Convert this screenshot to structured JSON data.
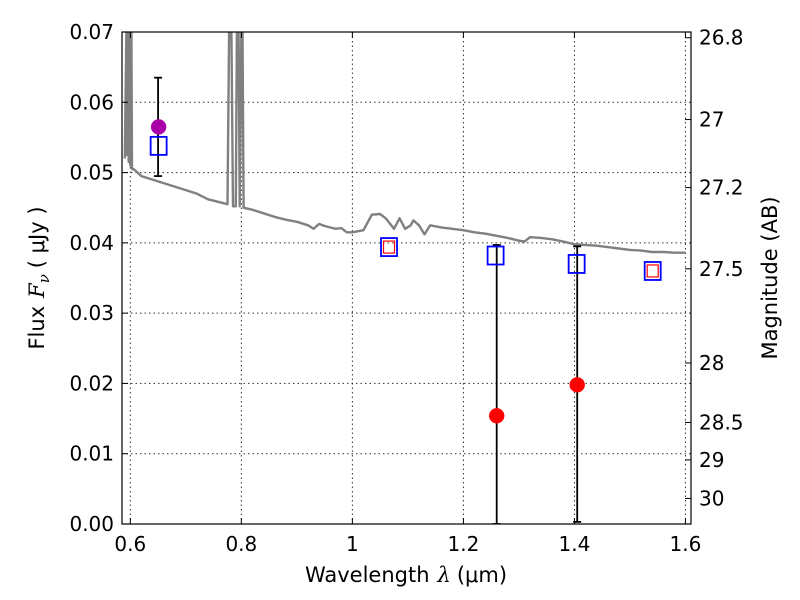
{
  "chart_data": {
    "type": "scatter",
    "xlabel_prefix": "Wavelength",
    "xlabel_symbol": "λ",
    "xlabel_unit": "(μm)",
    "ylabel_prefix": "Flux",
    "ylabel_symbol": "F",
    "ylabel_subscript": "ν",
    "ylabel_unit": "( μJy )",
    "y2label": "Magnitude (AB)",
    "xlim": [
      0.585,
      1.61
    ],
    "ylim": [
      0.0,
      0.07
    ],
    "xticks": [
      0.6,
      0.8,
      1.0,
      1.2,
      1.4,
      1.6
    ],
    "xtick_labels": [
      "0.6",
      "0.8",
      "1",
      "1.2",
      "1.4",
      "1.6"
    ],
    "yticks": [
      0.0,
      0.01,
      0.02,
      0.03,
      0.04,
      0.05,
      0.06,
      0.07
    ],
    "ytick_labels": [
      "0.00",
      "0.01",
      "0.02",
      "0.03",
      "0.04",
      "0.05",
      "0.06",
      "0.07"
    ],
    "y2ticks": [
      {
        "label": "26.8",
        "value": 26.8
      },
      {
        "label": "27",
        "value": 27.0
      },
      {
        "label": "27.2",
        "value": 27.2
      },
      {
        "label": "27.5",
        "value": 27.5
      },
      {
        "label": "28",
        "value": 28.0
      },
      {
        "label": "28.5",
        "value": 28.5
      },
      {
        "label": "29",
        "value": 29.0
      },
      {
        "label": "30",
        "value": 30.0
      }
    ],
    "grid": true,
    "series": [
      {
        "kind": "line",
        "color": "#808080",
        "points": [
          [
            0.59,
            0.052
          ],
          [
            0.593,
            0.07
          ],
          [
            0.594,
            0.0525
          ],
          [
            0.596,
            0.07
          ],
          [
            0.597,
            0.0515
          ],
          [
            0.599,
            0.07
          ],
          [
            0.6,
            0.051
          ],
          [
            0.602,
            0.07
          ],
          [
            0.603,
            0.0505
          ],
          [
            0.606,
            0.0505
          ],
          [
            0.62,
            0.0495
          ],
          [
            0.64,
            0.049
          ],
          [
            0.66,
            0.0485
          ],
          [
            0.68,
            0.048
          ],
          [
            0.7,
            0.0475
          ],
          [
            0.72,
            0.047
          ],
          [
            0.74,
            0.0462
          ],
          [
            0.76,
            0.0458
          ],
          [
            0.775,
            0.0455
          ],
          [
            0.778,
            0.07
          ],
          [
            0.782,
            0.07
          ],
          [
            0.785,
            0.0452
          ],
          [
            0.79,
            0.0452
          ],
          [
            0.792,
            0.07
          ],
          [
            0.795,
            0.07
          ],
          [
            0.797,
            0.0452
          ],
          [
            0.8,
            0.07
          ],
          [
            0.802,
            0.07
          ],
          [
            0.804,
            0.045
          ],
          [
            0.82,
            0.0447
          ],
          [
            0.84,
            0.0442
          ],
          [
            0.86,
            0.0437
          ],
          [
            0.88,
            0.0433
          ],
          [
            0.9,
            0.043
          ],
          [
            0.92,
            0.0425
          ],
          [
            0.93,
            0.042
          ],
          [
            0.94,
            0.0427
          ],
          [
            0.95,
            0.0424
          ],
          [
            0.97,
            0.042
          ],
          [
            0.98,
            0.0421
          ],
          [
            0.99,
            0.0415
          ],
          [
            1.0,
            0.0415
          ],
          [
            1.02,
            0.0418
          ],
          [
            1.035,
            0.044
          ],
          [
            1.05,
            0.0441
          ],
          [
            1.06,
            0.0435
          ],
          [
            1.075,
            0.042
          ],
          [
            1.085,
            0.0435
          ],
          [
            1.095,
            0.042
          ],
          [
            1.105,
            0.0425
          ],
          [
            1.11,
            0.0432
          ],
          [
            1.12,
            0.0425
          ],
          [
            1.13,
            0.0412
          ],
          [
            1.14,
            0.0425
          ],
          [
            1.16,
            0.0422
          ],
          [
            1.18,
            0.042
          ],
          [
            1.2,
            0.0418
          ],
          [
            1.22,
            0.0415
          ],
          [
            1.24,
            0.0413
          ],
          [
            1.26,
            0.041
          ],
          [
            1.28,
            0.0407
          ],
          [
            1.3,
            0.0403
          ],
          [
            1.31,
            0.0402
          ],
          [
            1.32,
            0.0408
          ],
          [
            1.34,
            0.0407
          ],
          [
            1.36,
            0.0405
          ],
          [
            1.38,
            0.0402
          ],
          [
            1.4,
            0.0398
          ],
          [
            1.42,
            0.0397
          ],
          [
            1.44,
            0.0396
          ],
          [
            1.46,
            0.0394
          ],
          [
            1.48,
            0.0392
          ],
          [
            1.5,
            0.039
          ],
          [
            1.52,
            0.0389
          ],
          [
            1.54,
            0.0387
          ],
          [
            1.56,
            0.0387
          ],
          [
            1.58,
            0.0386
          ],
          [
            1.6,
            0.0386
          ]
        ]
      },
      {
        "kind": "errorbars",
        "color": "#000000",
        "points": [
          {
            "x": 0.65,
            "low": 0.0495,
            "high": 0.0635
          },
          {
            "x": 1.26,
            "low": 0.0,
            "high": 0.0397
          },
          {
            "x": 1.405,
            "low": 0.0003,
            "high": 0.0395
          }
        ]
      },
      {
        "kind": "squares",
        "color": "#0000ff",
        "points": [
          [
            0.651,
            0.0538
          ],
          [
            1.066,
            0.0394
          ],
          [
            1.258,
            0.0382
          ],
          [
            1.404,
            0.037
          ],
          [
            1.541,
            0.036
          ]
        ]
      },
      {
        "kind": "squares-small",
        "color": "#ff0000",
        "points": [
          [
            1.066,
            0.0394
          ],
          [
            1.541,
            0.036
          ]
        ]
      },
      {
        "kind": "circles",
        "color": "#ff0000",
        "points": [
          [
            1.26,
            0.0154
          ],
          [
            1.405,
            0.0198
          ]
        ]
      },
      {
        "kind": "circles",
        "color": "#aa00aa",
        "points": [
          [
            0.651,
            0.0565
          ]
        ]
      }
    ]
  }
}
